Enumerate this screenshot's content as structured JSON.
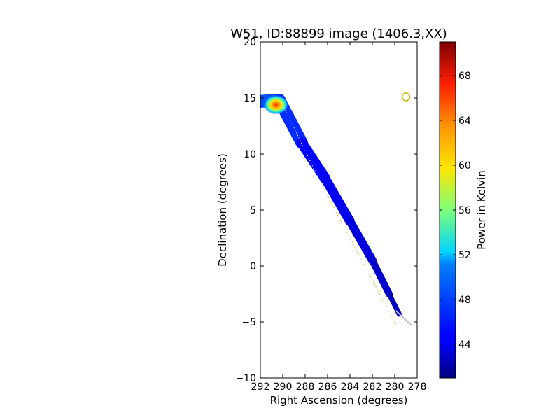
{
  "chart_data": {
    "type": "heatmap",
    "title": "W51, ID:88899 image (1406.3,XX)",
    "xlabel": "Right Ascension (degrees)",
    "ylabel": "Declination (degrees)",
    "xlim": [
      292,
      278
    ],
    "ylim": [
      -10,
      20
    ],
    "x_ticks": [
      292,
      290,
      288,
      286,
      284,
      282,
      280,
      278
    ],
    "x_tick_labels": [
      "292",
      "290",
      "288",
      "286",
      "284",
      "282",
      "280",
      "278"
    ],
    "y_ticks": [
      -10,
      -5,
      0,
      5,
      10,
      15,
      20
    ],
    "y_tick_labels": [
      "−10",
      "−5",
      "0",
      "5",
      "10",
      "15",
      "20"
    ],
    "colorbar": {
      "label": "Power in Kelvin",
      "range": [
        41,
        71
      ],
      "ticks": [
        44,
        48,
        52,
        56,
        60,
        64,
        68
      ],
      "tick_labels": [
        "44",
        "48",
        "52",
        "56",
        "60",
        "64",
        "68"
      ],
      "colormap": "jet"
    },
    "scan_strip": {
      "points": [
        [
          292.0,
          14.7
        ],
        [
          290.3,
          14.8
        ],
        [
          288.3,
          11.0
        ],
        [
          286.2,
          7.8
        ],
        [
          284.0,
          4.0
        ],
        [
          282.0,
          0.5
        ],
        [
          280.5,
          -2.5
        ],
        [
          279.6,
          -4.3
        ]
      ],
      "widths_deg": [
        1.1,
        1.2,
        1.0,
        0.9,
        0.8,
        0.7,
        0.55,
        0.35
      ],
      "values": [
        47,
        47,
        45,
        44.5,
        44,
        43.5,
        43,
        42.5
      ],
      "faint_tail": [
        [
          279.9,
          -4.0
        ],
        [
          278.5,
          -5.3
        ]
      ]
    },
    "hotspot": {
      "ra": 290.6,
      "dec": 14.4,
      "peak": 69
    },
    "dotted_track_white": [
      [
        290.1,
        14.6
      ],
      [
        286.4,
        7.0
      ]
    ],
    "dotted_track_yellow": [
      [
        286.4,
        7.0
      ],
      [
        279.9,
        -5.2
      ]
    ],
    "marker_circle": {
      "ra": 279.0,
      "dec": 15.1,
      "color": "#c8b400"
    }
  }
}
